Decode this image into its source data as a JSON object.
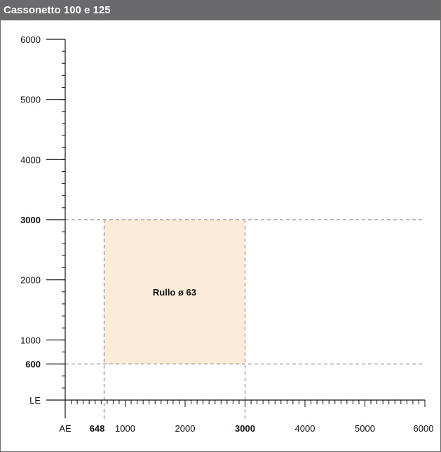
{
  "header": {
    "title": "Cassonetto 100 e 125"
  },
  "chart_data": {
    "type": "area",
    "title": "Cassonetto 100 e 125",
    "x_axis": {
      "origin_label": "AE",
      "range": [
        0,
        6000
      ],
      "tick_labels": [
        "648",
        "1000",
        "2000",
        "3000",
        "4000",
        "5000",
        "6000"
      ],
      "bold_labels": [
        "648",
        "3000"
      ],
      "minor_tick_step": 100
    },
    "y_axis": {
      "origin_label": "LE",
      "range": [
        0,
        6000
      ],
      "tick_labels": [
        "600",
        "1000",
        "2000",
        "3000",
        "4000",
        "5000",
        "6000"
      ],
      "bold_labels": [
        "600",
        "3000"
      ],
      "minor_tick_step": 200
    },
    "regions": [
      {
        "label": "Rullo ø 63",
        "x_min": 648,
        "x_max": 3000,
        "y_min": 600,
        "y_max": 3000,
        "color": "#fcebd9"
      }
    ],
    "reference_lines": {
      "x": [
        648,
        3000
      ],
      "y": [
        600,
        3000
      ]
    },
    "grid": false
  },
  "colors": {
    "title_bar": "#6a6a6c",
    "region_fill": "#fcebd9",
    "guide_line": "#777777"
  }
}
